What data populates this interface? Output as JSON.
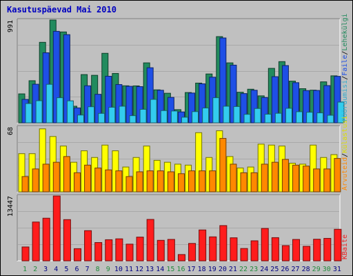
{
  "chart_data": {
    "type": "bar",
    "title": "Kasutuspäevad Mai 2010",
    "categories": [
      "1",
      "2",
      "3",
      "4",
      "5",
      "6",
      "7",
      "8",
      "9",
      "10",
      "11",
      "12",
      "13",
      "14",
      "15",
      "16",
      "17",
      "18",
      "19",
      "20",
      "21",
      "22",
      "23",
      "24",
      "25",
      "26",
      "27",
      "28",
      "29",
      "30",
      "31"
    ],
    "weekend_days": [
      "1",
      "2",
      "8",
      "9",
      "15",
      "16",
      "22",
      "23",
      "29",
      "30"
    ],
    "panels": [
      {
        "id": "top",
        "ylabel_max": "991",
        "ymax": 991,
        "series": [
          {
            "name": "Lehekülgi",
            "color": "#228b5e",
            "values": [
              279,
              406,
              776,
              991,
              876,
              160,
              465,
              458,
              670,
              476,
              357,
              356,
              578,
              318,
              285,
              127,
              292,
              383,
              471,
              831,
              578,
              295,
              324,
              260,
              525,
              590,
              402,
              329,
              315,
              395,
              453
            ]
          },
          {
            "name": "Faile",
            "color": "#1e4fe6",
            "values": [
              226,
              372,
              675,
              882,
              850,
              144,
              357,
              275,
              449,
              369,
              352,
              349,
              531,
              314,
              245,
              105,
              287,
              376,
              440,
              818,
              556,
              282,
              314,
              244,
              445,
              552,
              387,
              311,
              312,
              359,
              448
            ]
          },
          {
            "name": "Pöördumisi",
            "color": "#33ccee",
            "values": [
              186,
              213,
              371,
              242,
              212,
              75,
              155,
              91,
              150,
              160,
              69,
              130,
              226,
              118,
              114,
              54,
              108,
              143,
              242,
              160,
              157,
              82,
              138,
              83,
              92,
              140,
              107,
              102,
              96,
              73,
              200
            ]
          }
        ],
        "right_labels": [
          {
            "text": "Pöördumisi",
            "color": "#33aacc"
          },
          {
            "text": "Faile",
            "color": "#1e4fe6"
          },
          {
            "text": "Lehekülgi",
            "color": "#228b5e"
          }
        ]
      },
      {
        "id": "middle",
        "ylabel_max": "68",
        "ymax": 68,
        "series": [
          {
            "name": "Külastusi",
            "color": "#ffff00",
            "values": [
              40,
              40,
              66,
              58,
              48,
              31,
              43,
              36,
              49,
              43,
              26,
              36,
              48,
              33,
              31,
              29,
              28,
              62,
              36,
              64,
              37,
              25,
              26,
              50,
              49,
              48,
              30,
              29,
              49,
              36,
              39
            ]
          },
          {
            "name": "Arvuteid",
            "color": "#ff8800",
            "values": [
              16,
              24,
              29,
              31,
              37,
              20,
              28,
              25,
              23,
              22,
              16,
              21,
              22,
              22,
              21,
              19,
              22,
              22,
              22,
              56,
              29,
              20,
              20,
              29,
              31,
              34,
              28,
              27,
              24,
              24,
              35
            ]
          }
        ],
        "right_labels": [
          {
            "text": "Arvuteid",
            "color": "#ff8800"
          },
          {
            "text": "Külastusi",
            "color": "#dddd00"
          }
        ]
      },
      {
        "id": "bottom",
        "ylabel_max": "13447",
        "ymax": 13447,
        "series": [
          {
            "name": "KBaite",
            "color": "#ff1c1c",
            "values": [
              2873,
              8042,
              8837,
              13447,
              8542,
              2521,
              6256,
              3791,
              4374,
              4558,
              3458,
              4919,
              8583,
              4250,
              4441,
              1303,
              3605,
              6404,
              4970,
              7305,
              4773,
              2557,
              4150,
              6711,
              4804,
              3155,
              4430,
              3009,
              4477,
              4656,
              6540
            ]
          }
        ],
        "right_labels": [
          {
            "text": "KBaite",
            "color": "#ee2020"
          }
        ]
      }
    ],
    "grid": true,
    "legend": "right-vertical"
  }
}
